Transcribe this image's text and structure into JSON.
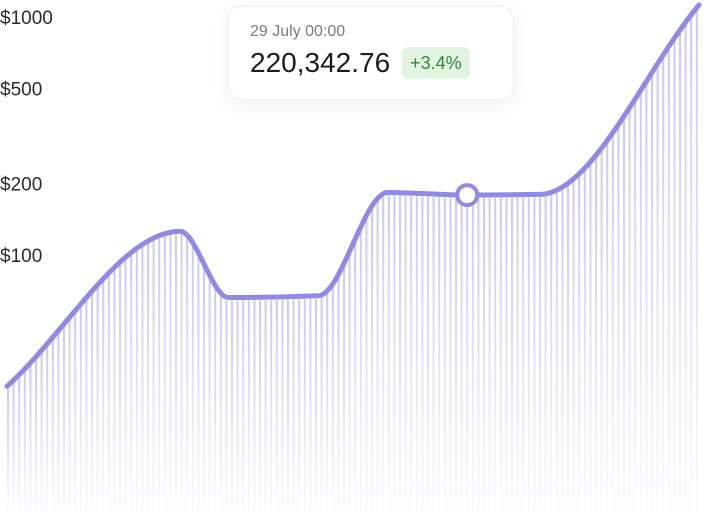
{
  "chart_data": {
    "type": "area",
    "title": "",
    "xlabel": "",
    "ylabel": "",
    "y_scale": "log",
    "y_ticks": [
      "$1000",
      "$500",
      "$200",
      "$100"
    ],
    "y_tick_values": [
      1000,
      500,
      200,
      100
    ],
    "ylim": [
      20,
      1000
    ],
    "grid": false,
    "legend": "none",
    "series": [
      {
        "color": "#9189e5",
        "points": [
          {
            "x": 0.0,
            "y": 25
          },
          {
            "x": 25.0,
            "y": 112
          },
          {
            "x": 32.0,
            "y": 59
          },
          {
            "x": 45.0,
            "y": 60
          },
          {
            "x": 55.0,
            "y": 163
          },
          {
            "x": 66.5,
            "y": 159
          },
          {
            "x": 77.0,
            "y": 160
          },
          {
            "x": 100.0,
            "y": 1000
          }
        ]
      }
    ],
    "highlight": {
      "x": 66.5,
      "y": 159
    }
  },
  "tooltip": {
    "date": "29 July 00:00",
    "value": "220,342.76",
    "change": "+3.4%"
  },
  "colors": {
    "line": "#9189e5",
    "bars": "#c9c4f3",
    "badge_bg": "#e3f3e2",
    "badge_text": "#2e8a36"
  }
}
